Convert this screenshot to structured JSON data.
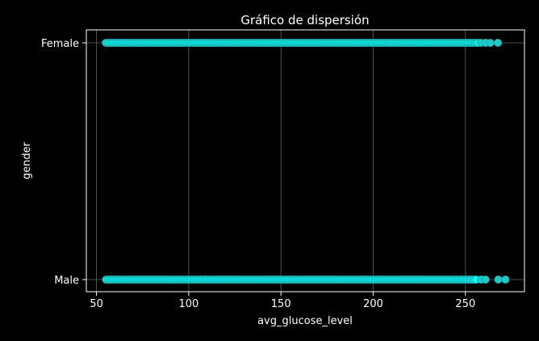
{
  "chart_data": {
    "type": "scatter",
    "title": "Gráfico de dispersión",
    "xlabel": "avg_glucose_level",
    "ylabel": "gender",
    "xlim": [
      44.5,
      282.0
    ],
    "xticks": [
      50,
      100,
      150,
      200,
      250
    ],
    "categories": [
      "Male",
      "Female"
    ],
    "grid": true,
    "point_color": "#00ffff",
    "edge_color": "#1fa8a8",
    "background": "#000000",
    "text_color": "#ffffff",
    "grid_color": "#666666",
    "series": [
      {
        "category": "Female",
        "x_dense_range": [
          55.1,
          257.0
        ],
        "x_outliers": [
          258.3,
          261.0,
          263.5,
          267.6
        ]
      },
      {
        "category": "Male",
        "x_dense_range": [
          55.2,
          256.5
        ],
        "x_outliers": [
          258.5,
          260.9,
          267.8,
          271.7
        ]
      }
    ]
  }
}
